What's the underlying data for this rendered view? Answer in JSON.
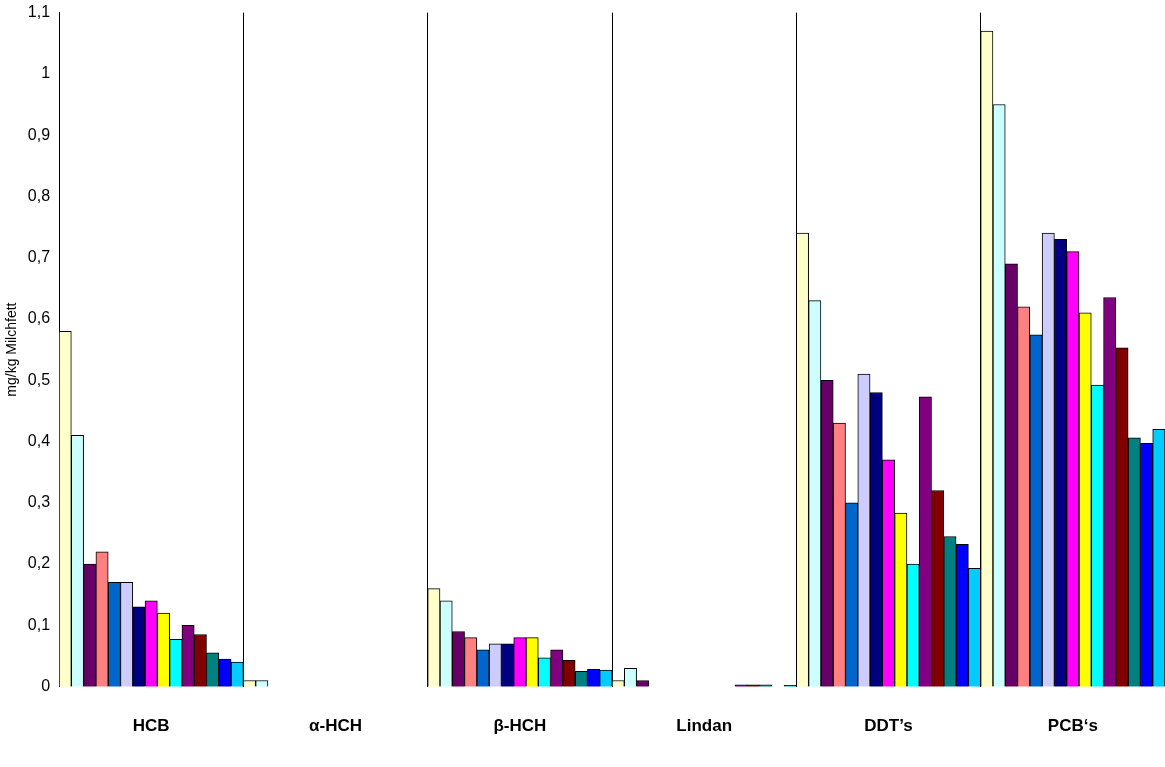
{
  "chart_data": {
    "type": "bar",
    "ylabel": "mg/kg Milchfett",
    "categories": [
      "HCB",
      "α-HCH",
      "β-HCH",
      "Lindan",
      "DDT’s",
      "PCB‘s"
    ],
    "series": [
      {
        "color": "#ffffcc",
        "values": [
          0.58,
          0.01,
          0.16,
          0.01,
          0.74,
          1.07
        ]
      },
      {
        "color": "#ccffff",
        "values": [
          0.41,
          0.01,
          0.14,
          0.03,
          0.63,
          0.95
        ]
      },
      {
        "color": "#660066",
        "values": [
          0.2,
          0,
          0.09,
          0.01,
          0.5,
          0.69
        ]
      },
      {
        "color": "#ff8080",
        "values": [
          0.22,
          0,
          0.08,
          0,
          0.43,
          0.62
        ]
      },
      {
        "color": "#0066cc",
        "values": [
          0.17,
          0,
          0.06,
          0,
          0.3,
          0.574
        ]
      },
      {
        "color": "#ccccff",
        "values": [
          0.17,
          0,
          0.07,
          0,
          0.51,
          0.74
        ]
      },
      {
        "color": "#000080",
        "values": [
          0.13,
          0,
          0.07,
          0,
          0.48,
          0.73
        ]
      },
      {
        "color": "#ff00ff",
        "values": [
          0.14,
          0,
          0.08,
          0,
          0.37,
          0.71
        ]
      },
      {
        "color": "#ffff00",
        "values": [
          0.12,
          0,
          0.08,
          0,
          0.283,
          0.61
        ]
      },
      {
        "color": "#00ffff",
        "values": [
          0.077,
          0,
          0.047,
          0,
          0.2,
          0.492
        ]
      },
      {
        "color": "#800080",
        "values": [
          0.1,
          0,
          0.06,
          0.003,
          0.473,
          0.635
        ]
      },
      {
        "color": "#800000",
        "values": [
          0.085,
          0,
          0.043,
          0.003,
          0.32,
          0.553
        ]
      },
      {
        "color": "#008080",
        "values": [
          0.055,
          0,
          0.025,
          0.003,
          0.245,
          0.406
        ]
      },
      {
        "color": "#0000ff",
        "values": [
          0.045,
          0,
          0.028,
          0,
          0.232,
          0.397
        ]
      },
      {
        "color": "#00ccff",
        "values": [
          0.04,
          0,
          0.027,
          0.002,
          0.193,
          0.42
        ]
      }
    ],
    "ylim": [
      0,
      1.1
    ],
    "yticks": [
      0,
      {
        "value": 0.1,
        "label": "0,1"
      },
      {
        "value": 0.2,
        "label": "0,2"
      },
      {
        "value": 0.3,
        "label": "0,3"
      },
      {
        "value": 0.4,
        "label": "0,4"
      },
      {
        "value": 0.5,
        "label": "0,5"
      },
      {
        "value": 0.6,
        "label": "0,6"
      },
      {
        "value": 0.7,
        "label": "0,7"
      },
      {
        "value": 0.8,
        "label": "0,8"
      },
      {
        "value": 0.9,
        "label": "0,9"
      },
      1,
      {
        "value": 1.1,
        "label": "1,1"
      }
    ],
    "grid": "x",
    "legend": false
  }
}
